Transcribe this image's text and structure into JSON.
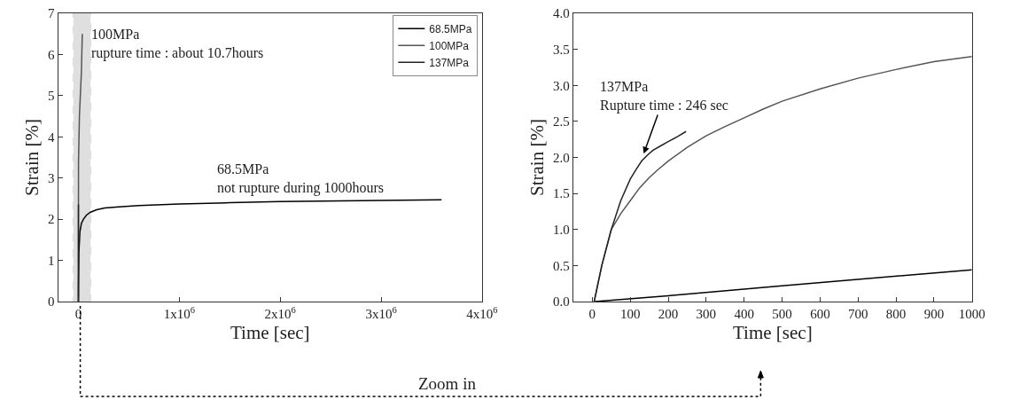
{
  "chart_data": [
    {
      "type": "line",
      "xlabel": "Time [sec]",
      "ylabel": "Strain [%]",
      "xlim": [
        -200000,
        4000000
      ],
      "xticks": [
        0,
        {
          "value": 1000000,
          "label": "1x10$^{6}$"
        },
        {
          "value": 2000000,
          "label": "2x10$^{6}$"
        },
        {
          "value": 3000000,
          "label": "3x10$^{6}$"
        },
        {
          "value": 4000000,
          "label": "4x10$^{6}$"
        }
      ],
      "ylim": [
        0,
        7
      ],
      "yticks": [
        0,
        1,
        2,
        3,
        4,
        5,
        6,
        7
      ],
      "legend": "top right",
      "series": [
        {
          "name": "68.5MPa",
          "color": "#000000",
          "x": [
            0,
            1000,
            5000,
            15000,
            30000,
            50000,
            80000,
            120000,
            180000,
            260000,
            400000,
            600000,
            1000000,
            1500000,
            2000000,
            2800000,
            3600000
          ],
          "values": [
            0,
            0.44,
            1.2,
            1.7,
            1.9,
            2.0,
            2.1,
            2.17,
            2.23,
            2.27,
            2.3,
            2.33,
            2.37,
            2.4,
            2.43,
            2.45,
            2.47
          ]
        },
        {
          "name": "100MPa",
          "color": "#555555",
          "x": [
            0,
            1000,
            10000,
            30000,
            38520
          ],
          "values": [
            0,
            3.4,
            4.5,
            5.6,
            6.5
          ]
        },
        {
          "name": "137MPa",
          "color": "#222222",
          "x": [
            0,
            50,
            100,
            160,
            246
          ],
          "values": [
            0,
            1.0,
            1.7,
            2.1,
            2.36
          ]
        }
      ],
      "bands": [
        {
          "axis": "x",
          "from": -50000,
          "to": 120000,
          "color": "#000000"
        }
      ],
      "annotations": [
        {
          "text": "100MPa\nrupture time : about 10.7hours",
          "x": 38520,
          "y": 6.5
        },
        {
          "text": "68.5MPa\nnot rupture during 1000hours",
          "x": 1360000,
          "y": 2.4
        },
        "Zoom in"
      ]
    },
    {
      "type": "line",
      "xlabel": "Time [sec]",
      "ylabel": "Strain [%]",
      "xlim": [
        -50,
        1000
      ],
      "xticks": [
        0,
        100,
        200,
        300,
        400,
        500,
        600,
        700,
        800,
        900,
        1000
      ],
      "ylim": [
        0,
        4
      ],
      "yticks": [
        {
          "value": 0,
          "label": "0.0"
        },
        {
          "value": 0.5,
          "label": "0.5"
        },
        {
          "value": 1,
          "label": "1.0"
        },
        {
          "value": 1.5,
          "label": "1.5"
        },
        {
          "value": 2,
          "label": "2.0"
        },
        {
          "value": 2.5,
          "label": "2.5"
        },
        {
          "value": 3,
          "label": "3.0"
        },
        {
          "value": 3.5,
          "label": "3.5"
        },
        {
          "value": 4,
          "label": "4.0"
        }
      ],
      "series": [
        {
          "color": "#000000",
          "x": [
            7,
            200,
            500,
            1000
          ],
          "values": [
            0,
            0.08,
            0.22,
            0.44
          ]
        },
        {
          "color": "#555555",
          "x": [
            5,
            25,
            50,
            75,
            100,
            125,
            150,
            175,
            200,
            250,
            300,
            350,
            400,
            450,
            500,
            600,
            700,
            800,
            900,
            1000
          ],
          "values": [
            0,
            0.5,
            1.0,
            1.22,
            1.4,
            1.58,
            1.72,
            1.84,
            1.95,
            2.14,
            2.3,
            2.43,
            2.55,
            2.67,
            2.78,
            2.95,
            3.1,
            3.22,
            3.33,
            3.4
          ]
        },
        {
          "color": "#222222",
          "x": [
            5,
            25,
            50,
            75,
            100,
            115,
            130,
            145,
            160,
            180,
            200,
            225,
            247
          ],
          "values": [
            0,
            0.5,
            1.0,
            1.4,
            1.7,
            1.83,
            1.95,
            2.03,
            2.1,
            2.16,
            2.22,
            2.29,
            2.36
          ]
        }
      ],
      "annotations": [
        {
          "text": "137MPa\nRupture time : 246 sec",
          "x": 134,
          "y": 2.03
        }
      ]
    }
  ]
}
